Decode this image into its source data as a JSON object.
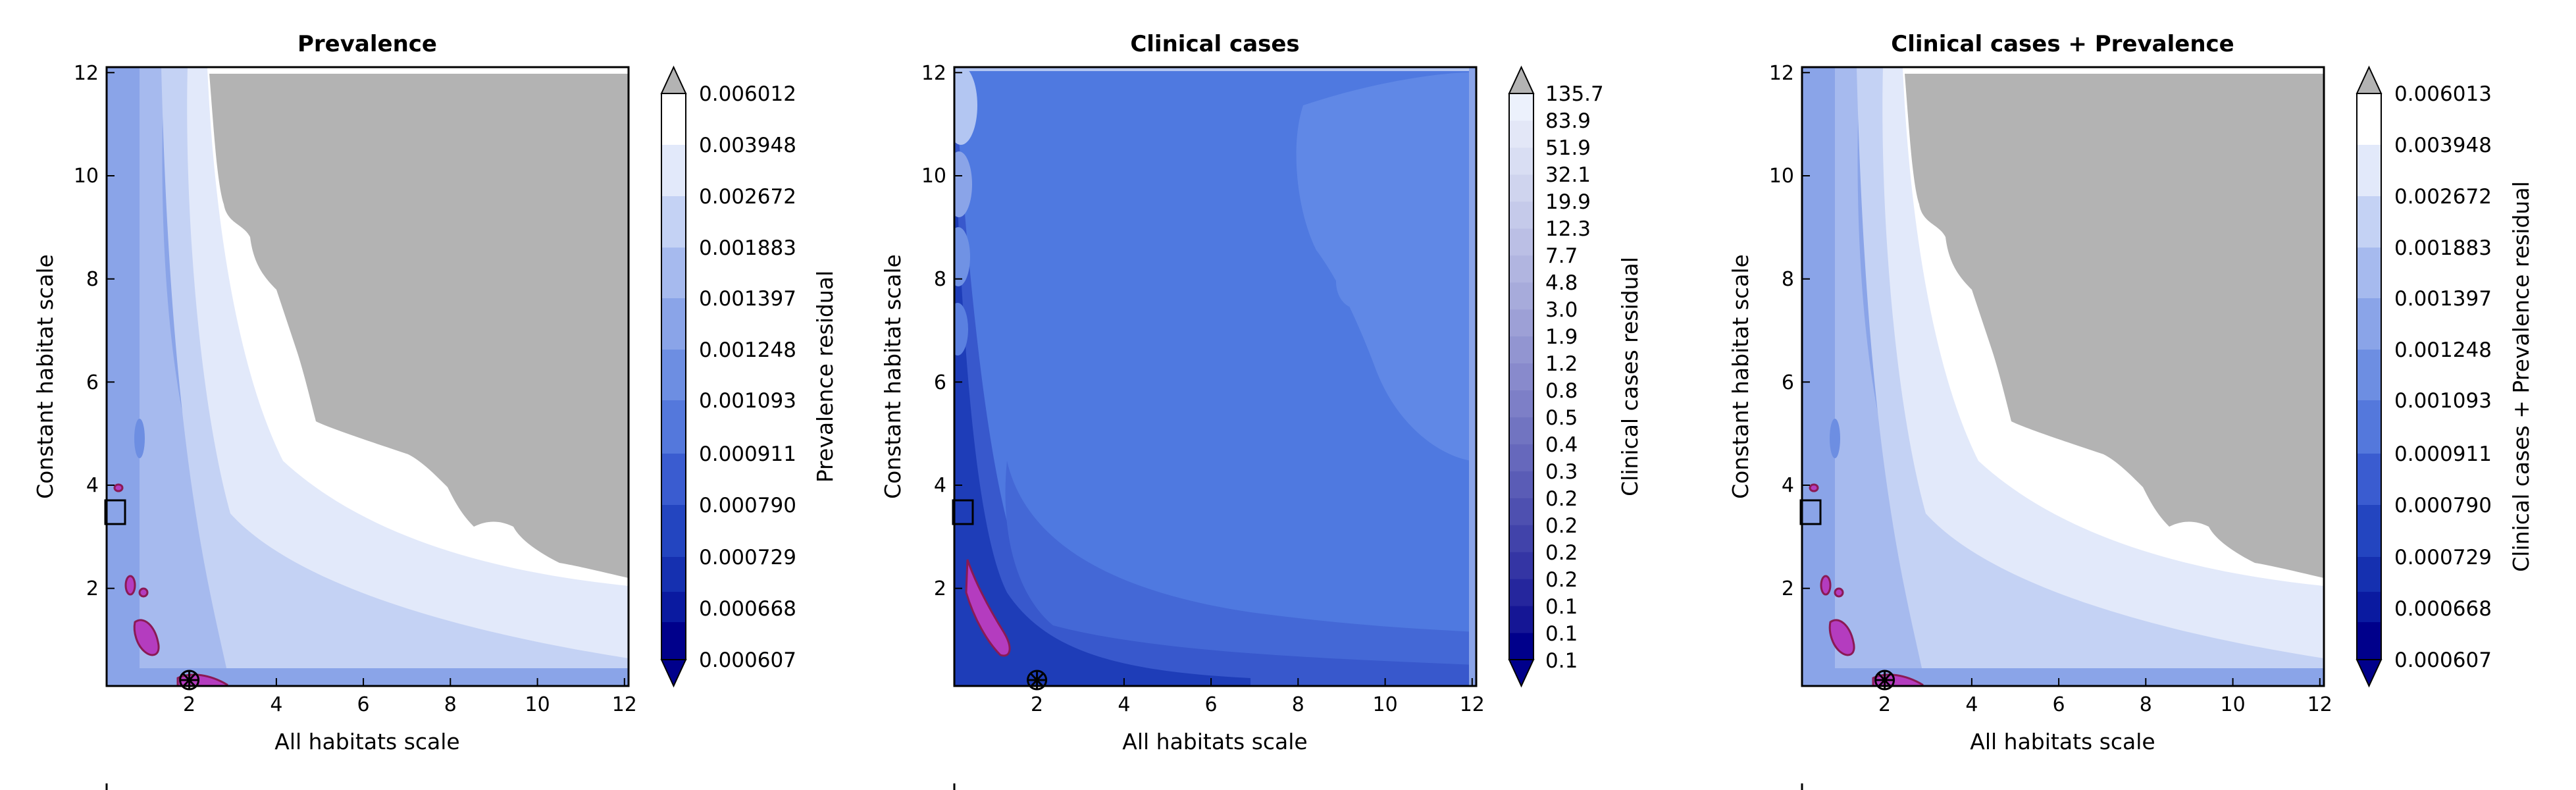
{
  "chart_data": [
    {
      "type": "heatmap",
      "title": "Prevalence",
      "xlabel": "All habitats scale",
      "ylabel": "Constant habitat scale",
      "xlim": [
        0.1,
        12.1
      ],
      "ylim": [
        0.1,
        12.1
      ],
      "x_ticks": [
        "2",
        "4",
        "6",
        "8",
        "10",
        "12"
      ],
      "y_ticks": [
        "2",
        "4",
        "6",
        "8",
        "10",
        "12"
      ],
      "colorbar_label": "Prevalence residual",
      "colorbar_ticks": [
        "0.006012",
        "0.003948",
        "0.002672",
        "0.001883",
        "0.001397",
        "0.001248",
        "0.001093",
        "0.000911",
        "0.000790",
        "0.000729",
        "0.000668",
        "0.000607"
      ],
      "colorbar_extend": "both",
      "legend_placement": "below",
      "colors": {
        "levels": [
          "#00008b",
          "#0a1aa0",
          "#1530b0",
          "#2345c0",
          "#3a5cd0",
          "#5478dc",
          "#6d8ee2",
          "#8aa4e8",
          "#a6baee",
          "#c4d2f4",
          "#e2e9fa",
          "#ffffff"
        ],
        "over": "#b3b3b3",
        "highlight": "#b43cbf"
      },
      "markers": {
        "best_fit": {
          "x": 2.0,
          "y": 0.3
        },
        "reference_box": {
          "x": 0.3,
          "y": 3.5
        }
      }
    },
    {
      "type": "heatmap",
      "title": "Clinical cases",
      "xlabel": "All habitats scale",
      "ylabel": "Constant habitat scale",
      "xlim": [
        0.1,
        12.1
      ],
      "ylim": [
        0.1,
        12.1
      ],
      "x_ticks": [
        "2",
        "4",
        "6",
        "8",
        "10",
        "12"
      ],
      "y_ticks": [
        "2",
        "4",
        "6",
        "8",
        "10",
        "12"
      ],
      "colorbar_label": "Clinical cases residual",
      "colorbar_ticks": [
        "135.7",
        "83.9",
        "51.9",
        "32.1",
        "19.9",
        "12.3",
        "7.7",
        "4.8",
        "3.0",
        "1.9",
        "1.2",
        "0.8",
        "0.5",
        "0.4",
        "0.3",
        "0.2",
        "0.2",
        "0.2",
        "0.2",
        "0.1",
        "0.1",
        "0.1"
      ],
      "colorbar_extend": "both",
      "legend_placement": "below",
      "colors": {
        "over": "#b3b3b3",
        "background": "#4f79e0",
        "band_dark": "#1e3db8",
        "band_mid": "#3858cc",
        "highlight": "#b43cbf"
      },
      "markers": {
        "best_fit": {
          "x": 2.0,
          "y": 0.3
        },
        "reference_box": {
          "x": 0.3,
          "y": 3.5
        }
      }
    },
    {
      "type": "heatmap",
      "title": "Clinical cases + Prevalence",
      "xlabel": "All habitats scale",
      "ylabel": "Constant habitat scale",
      "xlim": [
        0.1,
        12.1
      ],
      "ylim": [
        0.1,
        12.1
      ],
      "x_ticks": [
        "2",
        "4",
        "6",
        "8",
        "10",
        "12"
      ],
      "y_ticks": [
        "2",
        "4",
        "6",
        "8",
        "10",
        "12"
      ],
      "colorbar_label": "Clinical cases + Prevalence residual",
      "colorbar_ticks": [
        "0.006013",
        "0.003948",
        "0.002672",
        "0.001883",
        "0.001397",
        "0.001248",
        "0.001093",
        "0.000911",
        "0.000790",
        "0.000729",
        "0.000668",
        "0.000607"
      ],
      "colorbar_extend": "both",
      "legend_placement": "below",
      "colors": {
        "levels": [
          "#00008b",
          "#0a1aa0",
          "#1530b0",
          "#2345c0",
          "#3a5cd0",
          "#5478dc",
          "#6d8ee2",
          "#8aa4e8",
          "#a6baee",
          "#c4d2f4",
          "#e2e9fa",
          "#ffffff"
        ],
        "over": "#b3b3b3",
        "highlight": "#b43cbf"
      },
      "markers": {
        "best_fit": {
          "x": 2.0,
          "y": 0.3
        },
        "reference_box": {
          "x": 0.3,
          "y": 3.5
        }
      }
    }
  ]
}
